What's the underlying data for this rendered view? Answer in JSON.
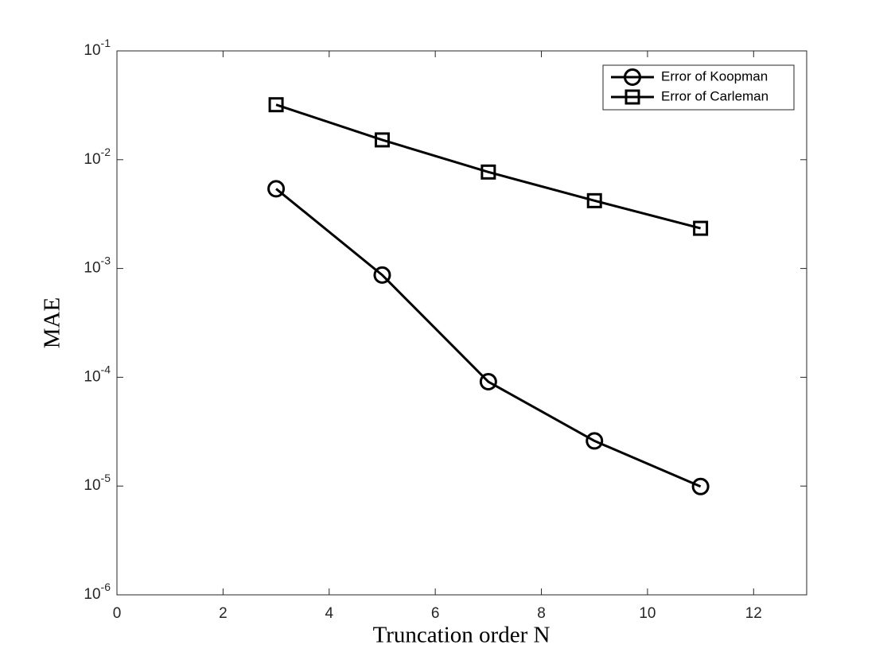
{
  "chart_data": {
    "type": "line",
    "x_label": "Truncation order N",
    "y_label": "MAE",
    "x": [
      3,
      5,
      7,
      9,
      11
    ],
    "series": [
      {
        "name": "Error of Koopman",
        "color": "#000000",
        "marker": "circle",
        "values": [
          0.0054,
          0.00087,
          9.1e-05,
          2.6e-05,
          9.9e-06
        ]
      },
      {
        "name": "Error of Carleman",
        "color": "#000000",
        "marker": "square",
        "values": [
          0.032,
          0.0152,
          0.0077,
          0.0042,
          0.00234
        ]
      }
    ],
    "xlim": [
      0,
      13
    ],
    "xticks": [
      0,
      2,
      4,
      6,
      8,
      10,
      12
    ],
    "ylim": [
      1e-06,
      0.1
    ],
    "yticks": [
      {
        "value": 1e-06,
        "label": "10^-6"
      },
      {
        "value": 1e-05,
        "label": "10^-5"
      },
      {
        "value": 0.0001,
        "label": "10^-4"
      },
      {
        "value": 0.001,
        "label": "10^-3"
      },
      {
        "value": 0.01,
        "label": "10^-2"
      },
      {
        "value": 0.1,
        "label": "10^-1"
      }
    ],
    "y_scale": "log",
    "grid": false,
    "legend_position": "northeast"
  }
}
